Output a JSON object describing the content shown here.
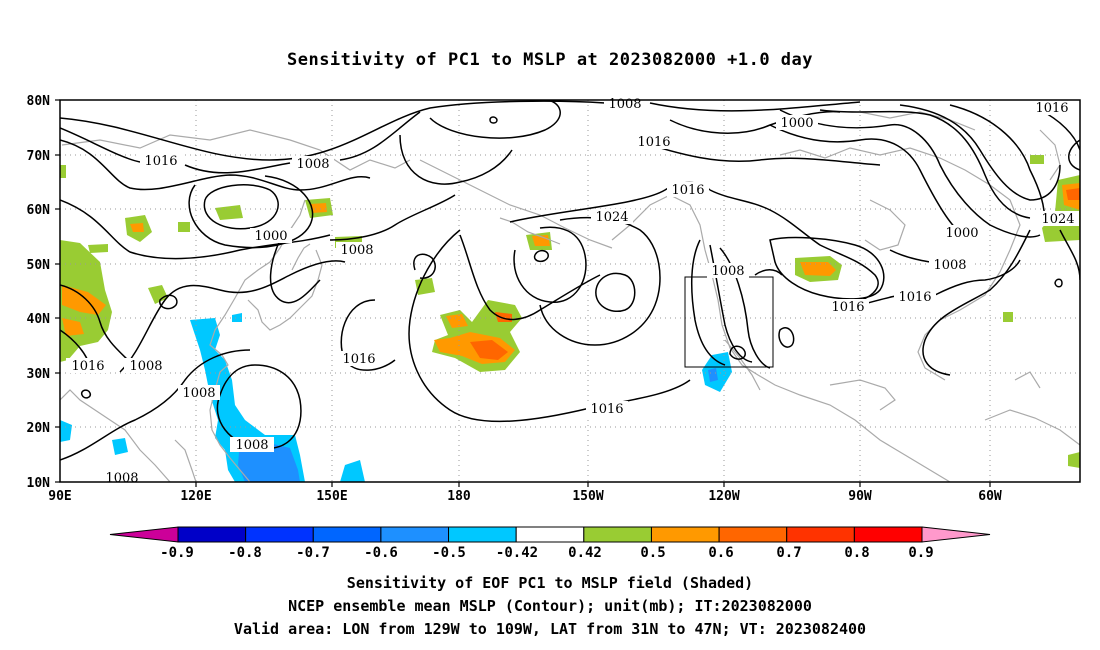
{
  "title": "Sensitivity of PC1 to MSLP at 2023082000 +1.0 day",
  "lat_labels": [
    "80N",
    "70N",
    "60N",
    "50N",
    "40N",
    "30N",
    "20N",
    "10N"
  ],
  "lon_labels": [
    "90E",
    "120E",
    "150E",
    "180",
    "150W",
    "120W",
    "90W",
    "60W"
  ],
  "colorbar": {
    "tick_labels": [
      "-0.9",
      "-0.8",
      "-0.7",
      "-0.6",
      "-0.5",
      "-0.42",
      "0.42",
      "0.5",
      "0.6",
      "0.7",
      "0.8",
      "0.9"
    ],
    "colors": [
      "#cc0099",
      "#0000c8",
      "#0033ff",
      "#0066ff",
      "#1e90ff",
      "#00c8ff",
      "#ffffff",
      "#99cc33",
      "#ff9900",
      "#ff6600",
      "#ff3300",
      "#ff0000",
      "#ff99cc"
    ]
  },
  "contour_labels": [
    {
      "text": "1008"
    },
    {
      "text": "1016"
    },
    {
      "text": "1000"
    },
    {
      "text": "1016"
    },
    {
      "text": "1016"
    },
    {
      "text": "1008"
    },
    {
      "text": "1016"
    },
    {
      "text": "1024"
    },
    {
      "text": "1000"
    },
    {
      "text": "1008"
    },
    {
      "text": "1016"
    },
    {
      "text": "1000"
    },
    {
      "text": "1008"
    },
    {
      "text": "1016"
    },
    {
      "text": "1024"
    },
    {
      "text": "1008"
    },
    {
      "text": "1016"
    },
    {
      "text": "1016"
    },
    {
      "text": "1008"
    },
    {
      "text": "1008"
    },
    {
      "text": "1016"
    },
    {
      "text": "1008"
    },
    {
      "text": "1008"
    }
  ],
  "captions": [
    "Sensitivity of EOF PC1 to MSLP field (Shaded)",
    "NCEP ensemble mean MSLP (Contour); unit(mb); IT:2023082000",
    "Valid area: LON from 129W to 109W, LAT from 31N to 47N; VT: 2023082400"
  ]
}
